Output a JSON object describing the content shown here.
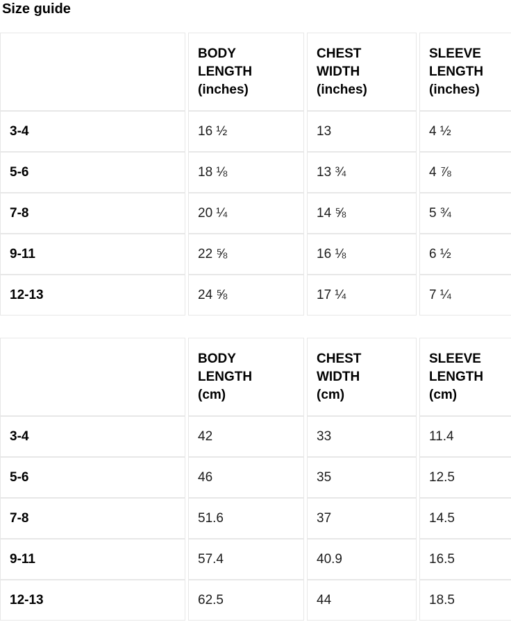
{
  "page": {
    "title": "Size guide"
  },
  "colors": {
    "background": "#ffffff",
    "border": "#e7e7e7",
    "heading_text": "#000000",
    "body_text": "#1b1b1b"
  },
  "tables": [
    {
      "unit": "inches",
      "columns": [
        "",
        "BODY\nLENGTH\n(inches)",
        "CHEST\nWIDTH\n(inches)",
        "SLEEVE\nLENGTH\n(inches)"
      ],
      "rows": [
        {
          "label": "3-4",
          "values": [
            "16 ½",
            "13",
            "4 ½"
          ]
        },
        {
          "label": "5-6",
          "values": [
            "18 ⅛",
            "13 ¾",
            "4 ⅞"
          ]
        },
        {
          "label": "7-8",
          "values": [
            "20 ¼",
            "14 ⅝",
            "5 ¾"
          ]
        },
        {
          "label": "9-11",
          "values": [
            "22 ⅝",
            "16 ⅛",
            "6 ½"
          ]
        },
        {
          "label": "12-13",
          "values": [
            "24 ⅝",
            "17 ¼",
            "7 ¼"
          ]
        }
      ]
    },
    {
      "unit": "cm",
      "columns": [
        "",
        "BODY\nLENGTH\n(cm)",
        "CHEST\nWIDTH\n(cm)",
        "SLEEVE\nLENGTH\n(cm)"
      ],
      "rows": [
        {
          "label": "3-4",
          "values": [
            "42",
            "33",
            "11.4"
          ]
        },
        {
          "label": "5-6",
          "values": [
            "46",
            "35",
            "12.5"
          ]
        },
        {
          "label": "7-8",
          "values": [
            "51.6",
            "37",
            "14.5"
          ]
        },
        {
          "label": "9-11",
          "values": [
            "57.4",
            "40.9",
            "16.5"
          ]
        },
        {
          "label": "12-13",
          "values": [
            "62.5",
            "44",
            "18.5"
          ]
        }
      ]
    }
  ]
}
